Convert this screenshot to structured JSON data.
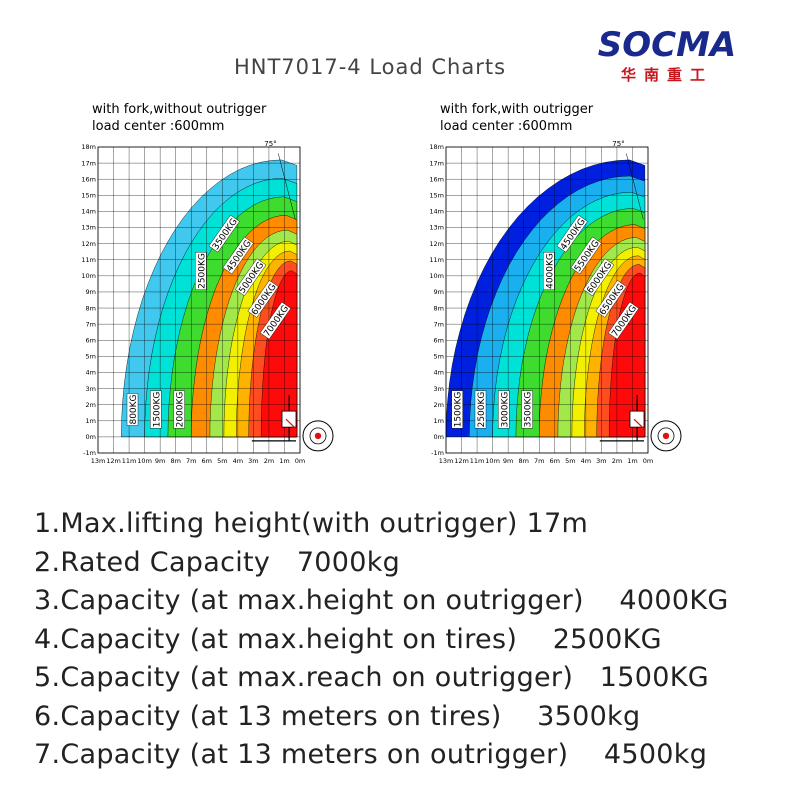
{
  "logo": {
    "text": "SOCMA",
    "subtitle": "华南重工"
  },
  "title": "HNT7017-4 Load Charts",
  "chart_data": [
    {
      "type": "area",
      "note_line1": "with fork,without outrigger",
      "note_line2": "load center :600mm",
      "angle_label": "75°",
      "y_ticks": [
        "18m",
        "17m",
        "16m",
        "15m",
        "14m",
        "13m",
        "12m",
        "11m",
        "10m",
        "9m",
        "8m",
        "7m",
        "6m",
        "5m",
        "4m",
        "3m",
        "2m",
        "1m",
        "0m",
        "-1m"
      ],
      "x_ticks": [
        "13m",
        "12m",
        "11m",
        "10m",
        "9m",
        "8m",
        "7m",
        "6m",
        "5m",
        "4m",
        "3m",
        "2m",
        "1m",
        "0m"
      ],
      "xlim": [
        13,
        0
      ],
      "ylim": [
        -1,
        18
      ],
      "zones": [
        {
          "label": "800KG",
          "color": "#40c8ee",
          "max_reach": 11.5
        },
        {
          "label": "1500KG",
          "color": "#00e2d8",
          "max_reach": 10.0
        },
        {
          "label": "2000KG",
          "color": "#3ddc2e",
          "max_reach": 8.5
        },
        {
          "label": "2500KG",
          "color": "#ff8c00",
          "max_reach": 7.0
        },
        {
          "label": "3500KG",
          "color": "#a2e84a",
          "max_reach": 5.8
        },
        {
          "label": "4500KG",
          "color": "#f3ef00",
          "max_reach": 4.9
        },
        {
          "label": "5000KG",
          "color": "#ffb300",
          "max_reach": 4.1
        },
        {
          "label": "6000KG",
          "color": "#ff4d1f",
          "max_reach": 3.3
        },
        {
          "label": "7000KG",
          "color": "#ff0a0a",
          "max_reach": 2.5
        }
      ]
    },
    {
      "type": "area",
      "note_line1": "with fork,with outrigger",
      "note_line2": "load center :600mm",
      "angle_label": "75°",
      "y_ticks": [
        "18m",
        "17m",
        "16m",
        "15m",
        "14m",
        "13m",
        "12m",
        "11m",
        "10m",
        "9m",
        "8m",
        "7m",
        "6m",
        "5m",
        "4m",
        "3m",
        "2m",
        "1m",
        "0m",
        "-1m"
      ],
      "x_ticks": [
        "13m",
        "12m",
        "11m",
        "10m",
        "9m",
        "8m",
        "7m",
        "6m",
        "5m",
        "4m",
        "3m",
        "2m",
        "1m",
        "0m"
      ],
      "xlim": [
        13,
        0
      ],
      "ylim": [
        -1,
        18
      ],
      "zones": [
        {
          "label": "1500KG",
          "color": "#0020e0",
          "max_reach": 13.0
        },
        {
          "label": "2500KG",
          "color": "#1ab0f0",
          "max_reach": 11.5
        },
        {
          "label": "3000KG",
          "color": "#00e2d8",
          "max_reach": 10.0
        },
        {
          "label": "3500KG",
          "color": "#3ddc2e",
          "max_reach": 8.5
        },
        {
          "label": "4000KG",
          "color": "#ff8c00",
          "max_reach": 7.0
        },
        {
          "label": "4500KG",
          "color": "#a2e84a",
          "max_reach": 5.8
        },
        {
          "label": "5500KG",
          "color": "#f3ef00",
          "max_reach": 4.9
        },
        {
          "label": "6000KG",
          "color": "#ffb300",
          "max_reach": 4.1
        },
        {
          "label": "6500KG",
          "color": "#ff4d1f",
          "max_reach": 3.3
        },
        {
          "label": "7000KG",
          "color": "#ff0a0a",
          "max_reach": 2.5
        }
      ]
    }
  ],
  "specs": [
    "1.Max.lifting height(with outrigger) 17m",
    "2.Rated Capacity   7000kg",
    "3.Capacity (at max.height on outrigger)    4000KG",
    "4.Capacity (at max.height on tires)    2500KG",
    "5.Capacity (at max.reach on outrigger)   1500KG",
    "6.Capacity (at 13 meters on tires)    3500kg",
    "7.Capacity (at 13 meters on outrigger)    4500kg"
  ]
}
